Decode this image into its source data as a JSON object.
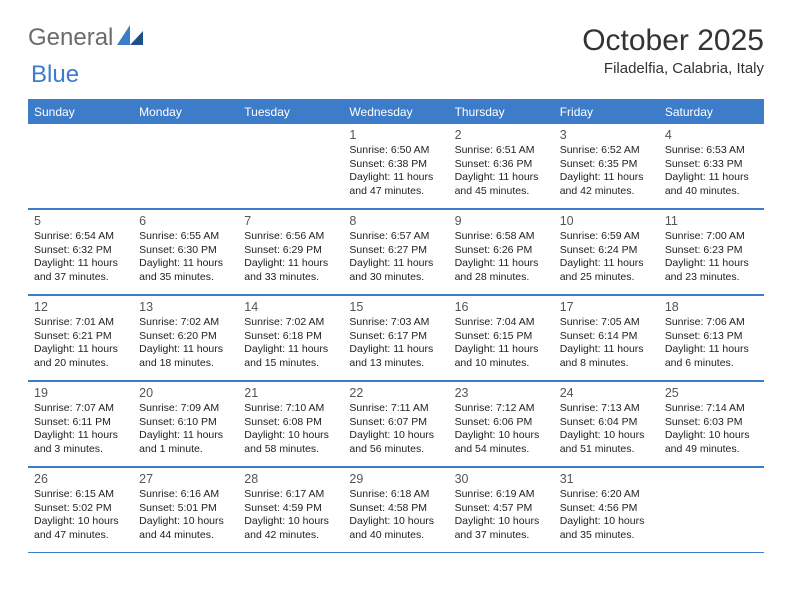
{
  "brand": {
    "word1": "General",
    "word2": "Blue"
  },
  "title": "October 2025",
  "location": "Filadelfia, Calabria, Italy",
  "colors": {
    "accent": "#3d7cc9",
    "header_text": "#ffffff",
    "body_text": "#222222",
    "muted": "#555555",
    "logo_gray": "#6b6b6b",
    "background": "#ffffff"
  },
  "day_headers": [
    "Sunday",
    "Monday",
    "Tuesday",
    "Wednesday",
    "Thursday",
    "Friday",
    "Saturday"
  ],
  "weeks": [
    [
      {
        "n": "",
        "sunrise": "",
        "sunset": "",
        "daylight": ""
      },
      {
        "n": "",
        "sunrise": "",
        "sunset": "",
        "daylight": ""
      },
      {
        "n": "",
        "sunrise": "",
        "sunset": "",
        "daylight": ""
      },
      {
        "n": "1",
        "sunrise": "Sunrise: 6:50 AM",
        "sunset": "Sunset: 6:38 PM",
        "daylight": "Daylight: 11 hours and 47 minutes."
      },
      {
        "n": "2",
        "sunrise": "Sunrise: 6:51 AM",
        "sunset": "Sunset: 6:36 PM",
        "daylight": "Daylight: 11 hours and 45 minutes."
      },
      {
        "n": "3",
        "sunrise": "Sunrise: 6:52 AM",
        "sunset": "Sunset: 6:35 PM",
        "daylight": "Daylight: 11 hours and 42 minutes."
      },
      {
        "n": "4",
        "sunrise": "Sunrise: 6:53 AM",
        "sunset": "Sunset: 6:33 PM",
        "daylight": "Daylight: 11 hours and 40 minutes."
      }
    ],
    [
      {
        "n": "5",
        "sunrise": "Sunrise: 6:54 AM",
        "sunset": "Sunset: 6:32 PM",
        "daylight": "Daylight: 11 hours and 37 minutes."
      },
      {
        "n": "6",
        "sunrise": "Sunrise: 6:55 AM",
        "sunset": "Sunset: 6:30 PM",
        "daylight": "Daylight: 11 hours and 35 minutes."
      },
      {
        "n": "7",
        "sunrise": "Sunrise: 6:56 AM",
        "sunset": "Sunset: 6:29 PM",
        "daylight": "Daylight: 11 hours and 33 minutes."
      },
      {
        "n": "8",
        "sunrise": "Sunrise: 6:57 AM",
        "sunset": "Sunset: 6:27 PM",
        "daylight": "Daylight: 11 hours and 30 minutes."
      },
      {
        "n": "9",
        "sunrise": "Sunrise: 6:58 AM",
        "sunset": "Sunset: 6:26 PM",
        "daylight": "Daylight: 11 hours and 28 minutes."
      },
      {
        "n": "10",
        "sunrise": "Sunrise: 6:59 AM",
        "sunset": "Sunset: 6:24 PM",
        "daylight": "Daylight: 11 hours and 25 minutes."
      },
      {
        "n": "11",
        "sunrise": "Sunrise: 7:00 AM",
        "sunset": "Sunset: 6:23 PM",
        "daylight": "Daylight: 11 hours and 23 minutes."
      }
    ],
    [
      {
        "n": "12",
        "sunrise": "Sunrise: 7:01 AM",
        "sunset": "Sunset: 6:21 PM",
        "daylight": "Daylight: 11 hours and 20 minutes."
      },
      {
        "n": "13",
        "sunrise": "Sunrise: 7:02 AM",
        "sunset": "Sunset: 6:20 PM",
        "daylight": "Daylight: 11 hours and 18 minutes."
      },
      {
        "n": "14",
        "sunrise": "Sunrise: 7:02 AM",
        "sunset": "Sunset: 6:18 PM",
        "daylight": "Daylight: 11 hours and 15 minutes."
      },
      {
        "n": "15",
        "sunrise": "Sunrise: 7:03 AM",
        "sunset": "Sunset: 6:17 PM",
        "daylight": "Daylight: 11 hours and 13 minutes."
      },
      {
        "n": "16",
        "sunrise": "Sunrise: 7:04 AM",
        "sunset": "Sunset: 6:15 PM",
        "daylight": "Daylight: 11 hours and 10 minutes."
      },
      {
        "n": "17",
        "sunrise": "Sunrise: 7:05 AM",
        "sunset": "Sunset: 6:14 PM",
        "daylight": "Daylight: 11 hours and 8 minutes."
      },
      {
        "n": "18",
        "sunrise": "Sunrise: 7:06 AM",
        "sunset": "Sunset: 6:13 PM",
        "daylight": "Daylight: 11 hours and 6 minutes."
      }
    ],
    [
      {
        "n": "19",
        "sunrise": "Sunrise: 7:07 AM",
        "sunset": "Sunset: 6:11 PM",
        "daylight": "Daylight: 11 hours and 3 minutes."
      },
      {
        "n": "20",
        "sunrise": "Sunrise: 7:09 AM",
        "sunset": "Sunset: 6:10 PM",
        "daylight": "Daylight: 11 hours and 1 minute."
      },
      {
        "n": "21",
        "sunrise": "Sunrise: 7:10 AM",
        "sunset": "Sunset: 6:08 PM",
        "daylight": "Daylight: 10 hours and 58 minutes."
      },
      {
        "n": "22",
        "sunrise": "Sunrise: 7:11 AM",
        "sunset": "Sunset: 6:07 PM",
        "daylight": "Daylight: 10 hours and 56 minutes."
      },
      {
        "n": "23",
        "sunrise": "Sunrise: 7:12 AM",
        "sunset": "Sunset: 6:06 PM",
        "daylight": "Daylight: 10 hours and 54 minutes."
      },
      {
        "n": "24",
        "sunrise": "Sunrise: 7:13 AM",
        "sunset": "Sunset: 6:04 PM",
        "daylight": "Daylight: 10 hours and 51 minutes."
      },
      {
        "n": "25",
        "sunrise": "Sunrise: 7:14 AM",
        "sunset": "Sunset: 6:03 PM",
        "daylight": "Daylight: 10 hours and 49 minutes."
      }
    ],
    [
      {
        "n": "26",
        "sunrise": "Sunrise: 6:15 AM",
        "sunset": "Sunset: 5:02 PM",
        "daylight": "Daylight: 10 hours and 47 minutes."
      },
      {
        "n": "27",
        "sunrise": "Sunrise: 6:16 AM",
        "sunset": "Sunset: 5:01 PM",
        "daylight": "Daylight: 10 hours and 44 minutes."
      },
      {
        "n": "28",
        "sunrise": "Sunrise: 6:17 AM",
        "sunset": "Sunset: 4:59 PM",
        "daylight": "Daylight: 10 hours and 42 minutes."
      },
      {
        "n": "29",
        "sunrise": "Sunrise: 6:18 AM",
        "sunset": "Sunset: 4:58 PM",
        "daylight": "Daylight: 10 hours and 40 minutes."
      },
      {
        "n": "30",
        "sunrise": "Sunrise: 6:19 AM",
        "sunset": "Sunset: 4:57 PM",
        "daylight": "Daylight: 10 hours and 37 minutes."
      },
      {
        "n": "31",
        "sunrise": "Sunrise: 6:20 AM",
        "sunset": "Sunset: 4:56 PM",
        "daylight": "Daylight: 10 hours and 35 minutes."
      },
      {
        "n": "",
        "sunrise": "",
        "sunset": "",
        "daylight": ""
      }
    ]
  ]
}
